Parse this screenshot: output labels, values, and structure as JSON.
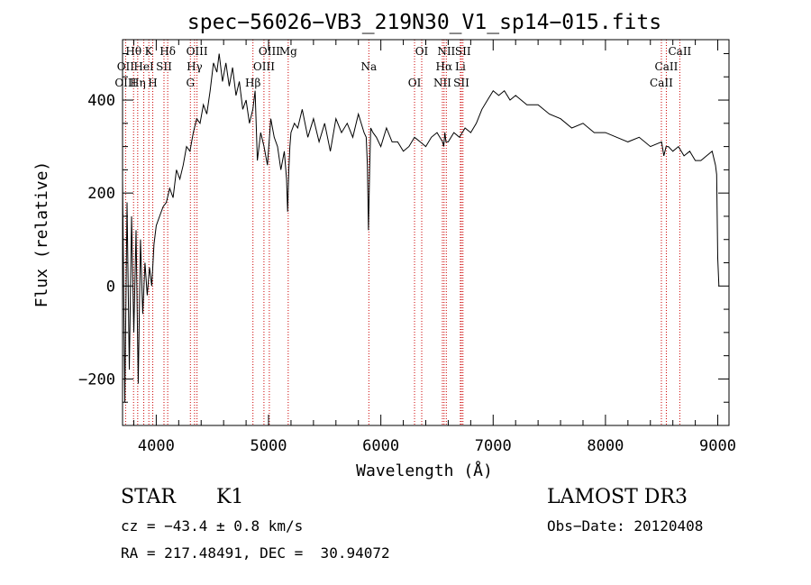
{
  "chart_data": {
    "type": "line",
    "title": "spec−56026−VB3_219N30_V1_sp14−015.fits",
    "xlabel": "Wavelength (Å)",
    "ylabel": "Flux (relative)",
    "xlim": [
      3700,
      9100
    ],
    "ylim": [
      -300,
      530
    ],
    "x_ticks": [
      4000,
      5000,
      6000,
      7000,
      8000,
      9000
    ],
    "y_ticks": [
      -200,
      0,
      200,
      400
    ],
    "x_minor_step": 200,
    "y_minor_step": 50,
    "grid": false,
    "color": "#000000",
    "line_marker_color": "#cc0000",
    "series": [
      {
        "x": [
          3700,
          3720,
          3740,
          3760,
          3780,
          3800,
          3820,
          3840,
          3860,
          3880,
          3900,
          3920,
          3940,
          3960,
          3980,
          4000,
          4030,
          4060,
          4090,
          4120,
          4150,
          4180,
          4210,
          4240,
          4270,
          4300,
          4330,
          4360,
          4390,
          4420,
          4450,
          4480,
          4510,
          4540,
          4560,
          4590,
          4620,
          4650,
          4680,
          4710,
          4740,
          4770,
          4800,
          4830,
          4860,
          4880,
          4900,
          4930,
          4960,
          4990,
          5020,
          5050,
          5080,
          5110,
          5140,
          5160,
          5170,
          5180,
          5190,
          5200,
          5230,
          5260,
          5300,
          5350,
          5400,
          5450,
          5500,
          5550,
          5600,
          5650,
          5700,
          5750,
          5800,
          5850,
          5870,
          5880,
          5890,
          5900,
          5910,
          5930,
          5960,
          6000,
          6050,
          6100,
          6150,
          6200,
          6250,
          6300,
          6350,
          6400,
          6450,
          6500,
          6550,
          6560,
          6570,
          6580,
          6600,
          6650,
          6700,
          6750,
          6800,
          6850,
          6900,
          6950,
          7000,
          7050,
          7100,
          7150,
          7200,
          7300,
          7400,
          7500,
          7600,
          7700,
          7800,
          7900,
          8000,
          8100,
          8200,
          8300,
          8400,
          8500,
          8520,
          8540,
          8560,
          8600,
          8650,
          8700,
          8750,
          8800,
          8850,
          8900,
          8950,
          8980,
          8990,
          9000,
          9010
        ],
        "y": [
          230,
          -250,
          180,
          -180,
          150,
          -100,
          120,
          -210,
          100,
          -60,
          50,
          -20,
          40,
          0,
          90,
          130,
          150,
          170,
          180,
          210,
          190,
          250,
          230,
          260,
          300,
          290,
          330,
          360,
          350,
          390,
          370,
          420,
          480,
          460,
          500,
          440,
          480,
          430,
          470,
          410,
          440,
          380,
          400,
          350,
          380,
          420,
          270,
          330,
          300,
          260,
          360,
          320,
          300,
          250,
          290,
          230,
          160,
          250,
          300,
          330,
          350,
          340,
          380,
          320,
          360,
          310,
          350,
          290,
          360,
          330,
          350,
          320,
          370,
          330,
          320,
          260,
          120,
          250,
          340,
          330,
          320,
          300,
          340,
          310,
          310,
          290,
          300,
          320,
          310,
          300,
          320,
          330,
          310,
          300,
          330,
          310,
          310,
          330,
          320,
          340,
          330,
          350,
          380,
          400,
          420,
          410,
          420,
          400,
          410,
          390,
          390,
          370,
          360,
          340,
          350,
          330,
          330,
          320,
          310,
          320,
          300,
          310,
          280,
          300,
          300,
          290,
          300,
          280,
          290,
          270,
          270,
          280,
          290,
          260,
          240,
          60,
          0
        ]
      }
    ],
    "line_markers": [
      {
        "label": "Hθ",
        "x": 3798
      },
      {
        "label": "OII",
        "x": 3727
      },
      {
        "label": "OIII",
        "x": 3727
      },
      {
        "label": "K",
        "x": 3934
      },
      {
        "label": "HeI",
        "x": 3889
      },
      {
        "label": "Hη",
        "x": 3835
      },
      {
        "label": "Hδ",
        "x": 4102
      },
      {
        "label": "SII",
        "x": 4069
      },
      {
        "label": "H",
        "x": 3969
      },
      {
        "label": "OIII",
        "x": 4363
      },
      {
        "label": "Hγ",
        "x": 4341
      },
      {
        "label": "G",
        "x": 4304
      },
      {
        "label": "OIII",
        "x": 5007
      },
      {
        "label": "OIII",
        "x": 4959
      },
      {
        "label": "Hβ",
        "x": 4861
      },
      {
        "label": "Mg",
        "x": 5175
      },
      {
        "label": "Na",
        "x": 5893
      },
      {
        "label": "OI",
        "x": 6300
      },
      {
        "label": "OI",
        "x": 6364
      },
      {
        "label": "Hα",
        "x": 6563
      },
      {
        "label": "SII",
        "x": 6717
      },
      {
        "label": "NII",
        "x": 6583
      },
      {
        "label": "Li",
        "x": 6708
      },
      {
        "label": "NII",
        "x": 6548
      },
      {
        "label": "SII",
        "x": 6731
      },
      {
        "label": "CaII",
        "x": 8542
      },
      {
        "label": "CaII",
        "x": 8498
      },
      {
        "label": "CaII",
        "x": 8662
      }
    ]
  },
  "info": {
    "object_class": "STAR",
    "subclass": "K1",
    "survey": "LAMOST DR3",
    "cz": "cz = −43.4 ± 0.8 km/s",
    "obs_date": "Obs−Date: 20120408",
    "coords": "RA = 217.48491, DEC =  30.94072"
  }
}
